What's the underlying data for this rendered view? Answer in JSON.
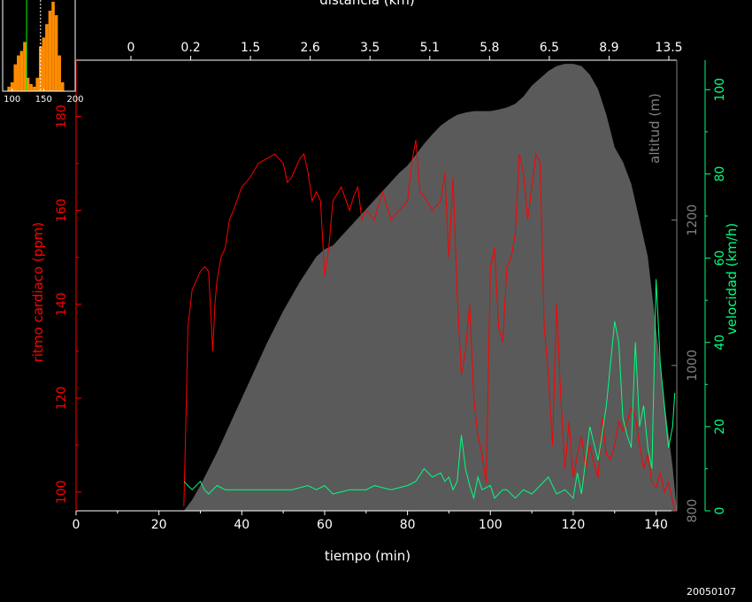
{
  "chart_data": {
    "type": "line",
    "date_stamp": "20050107",
    "colors": {
      "heart_rate": "#ff0000",
      "speed": "#00ff7f",
      "altitude_fill": "#5a5a5a",
      "altitude_axis": "#808080",
      "axes": "#ffffff",
      "histogram": "#ff8c00",
      "hist_mark_green": "#00ff00",
      "hist_mark_white": "#ffffff"
    },
    "axes": {
      "x_bottom": {
        "label": "tiempo (min)",
        "range": [
          0,
          145
        ],
        "ticks": [
          0,
          20,
          40,
          60,
          80,
          100,
          120,
          140
        ]
      },
      "x_top": {
        "label": "distancia (km)",
        "tick_labels": [
          "0",
          "0.2",
          "1.5",
          "2.6",
          "3.5",
          "5.1",
          "5.8",
          "6.5",
          "8.9",
          "13.5"
        ]
      },
      "y_left": {
        "label": "ritmo cardiaco (ppm)",
        "range": [
          96,
          192
        ],
        "ticks": [
          100,
          120,
          140,
          160,
          180
        ]
      },
      "y_alt": {
        "label": "altitud (m)",
        "range": [
          800,
          1420
        ],
        "ticks": [
          800,
          1000,
          1200
        ]
      },
      "y_right": {
        "label": "velocidad (km/h)",
        "range": [
          0,
          107
        ],
        "ticks": [
          0,
          20,
          40,
          60,
          80,
          100
        ]
      }
    },
    "series": [
      {
        "name": "ritmo cardiaco (ppm)",
        "x": [
          26,
          26.5,
          27,
          28,
          29,
          30,
          31,
          32,
          33,
          33.5,
          34,
          35,
          36,
          37,
          38,
          40,
          42,
          44,
          46,
          48,
          50,
          51,
          52,
          54,
          55,
          56,
          57,
          58,
          59,
          60,
          61,
          62,
          64,
          66,
          67,
          68,
          69,
          70,
          72,
          74,
          76,
          78,
          80,
          81,
          82,
          83,
          84,
          86,
          88,
          89,
          90,
          91,
          92,
          93,
          94,
          95,
          96,
          97,
          98,
          99,
          100,
          101,
          102,
          103,
          104,
          105,
          106,
          107,
          108,
          109,
          110,
          111,
          112,
          113,
          114,
          115,
          116,
          117,
          118,
          119,
          120,
          121,
          122,
          123,
          124,
          125,
          126,
          127,
          128,
          129,
          130,
          131,
          132,
          133,
          134,
          135,
          136,
          137,
          138,
          139,
          140,
          141,
          142,
          143,
          144,
          144.5
        ],
        "y": [
          97,
          115,
          135,
          143,
          145,
          147,
          148,
          147,
          130,
          140,
          145,
          150,
          152,
          158,
          160,
          165,
          167,
          170,
          171,
          172,
          170,
          166,
          167,
          171,
          172,
          168,
          162,
          164,
          162,
          146,
          152,
          162,
          165,
          160,
          163,
          165,
          158,
          160,
          158,
          164,
          158,
          160,
          162,
          170,
          175,
          164,
          163,
          160,
          162,
          168,
          150,
          167,
          142,
          125,
          130,
          140,
          120,
          112,
          108,
          102,
          148,
          152,
          135,
          132,
          148,
          150,
          155,
          172,
          168,
          158,
          165,
          172,
          170,
          135,
          125,
          110,
          140,
          120,
          105,
          115,
          103,
          108,
          112,
          105,
          110,
          106,
          103,
          116,
          108,
          107,
          110,
          115,
          113,
          115,
          118,
          116,
          110,
          105,
          108,
          102,
          101,
          104,
          100,
          102,
          98,
          96
        ]
      },
      {
        "name": "velocidad (km/h)",
        "x": [
          26,
          27,
          28,
          29,
          30,
          31,
          32,
          34,
          36,
          38,
          40,
          44,
          48,
          52,
          56,
          58,
          60,
          61,
          62,
          66,
          70,
          72,
          76,
          80,
          82,
          84,
          86,
          88,
          89,
          90,
          91,
          92,
          93,
          94,
          95,
          96,
          97,
          98,
          100,
          101,
          102,
          103,
          104,
          106,
          108,
          110,
          112,
          114,
          116,
          118,
          120,
          121,
          122,
          124,
          126,
          128,
          130,
          131,
          132,
          133,
          134,
          135,
          136,
          137,
          138,
          139,
          140,
          141,
          142,
          143,
          144,
          144.5
        ],
        "y": [
          7,
          6,
          5,
          6,
          7,
          5,
          4,
          6,
          5,
          5,
          5,
          5,
          5,
          5,
          6,
          5,
          6,
          5,
          4,
          5,
          5,
          6,
          5,
          6,
          7,
          10,
          8,
          9,
          7,
          8,
          5,
          7,
          18,
          10,
          6,
          3,
          8,
          5,
          6,
          3,
          4,
          5,
          5,
          3,
          5,
          4,
          6,
          8,
          4,
          5,
          3,
          9,
          4,
          20,
          12,
          25,
          45,
          40,
          22,
          18,
          15,
          40,
          20,
          25,
          15,
          10,
          55,
          35,
          25,
          15,
          20,
          28
        ]
      }
    ],
    "altitude": {
      "name": "altitud (m)",
      "x": [
        26,
        28,
        30,
        34,
        38,
        42,
        46,
        50,
        54,
        58,
        60,
        62,
        66,
        70,
        74,
        78,
        80,
        82,
        84,
        86,
        88,
        90,
        92,
        94,
        96,
        98,
        100,
        102,
        104,
        106,
        108,
        110,
        112,
        114,
        116,
        118,
        120,
        122,
        124,
        126,
        128,
        130,
        132,
        134,
        136,
        138,
        140,
        142,
        144,
        145
      ],
      "y": [
        800,
        815,
        835,
        880,
        930,
        980,
        1030,
        1075,
        1115,
        1150,
        1160,
        1165,
        1190,
        1215,
        1240,
        1265,
        1275,
        1290,
        1305,
        1318,
        1330,
        1338,
        1345,
        1348,
        1350,
        1350,
        1350,
        1352,
        1355,
        1360,
        1370,
        1385,
        1395,
        1405,
        1412,
        1415,
        1415,
        1412,
        1400,
        1380,
        1345,
        1300,
        1280,
        1250,
        1200,
        1150,
        1050,
        950,
        860,
        800
      ]
    },
    "inset_histogram": {
      "ticks": [
        100,
        150,
        200
      ],
      "xrange": [
        85,
        200
      ],
      "bins_x": [
        95,
        100,
        105,
        110,
        115,
        120,
        125,
        130,
        135,
        140,
        145,
        150,
        155,
        160,
        165,
        170,
        175,
        180
      ],
      "bins_y": [
        5,
        10,
        30,
        40,
        45,
        55,
        15,
        8,
        5,
        15,
        50,
        60,
        75,
        90,
        100,
        85,
        40,
        10
      ],
      "markers": [
        {
          "value": 123,
          "color": "green"
        },
        {
          "value": 145,
          "color": "white"
        }
      ]
    }
  }
}
